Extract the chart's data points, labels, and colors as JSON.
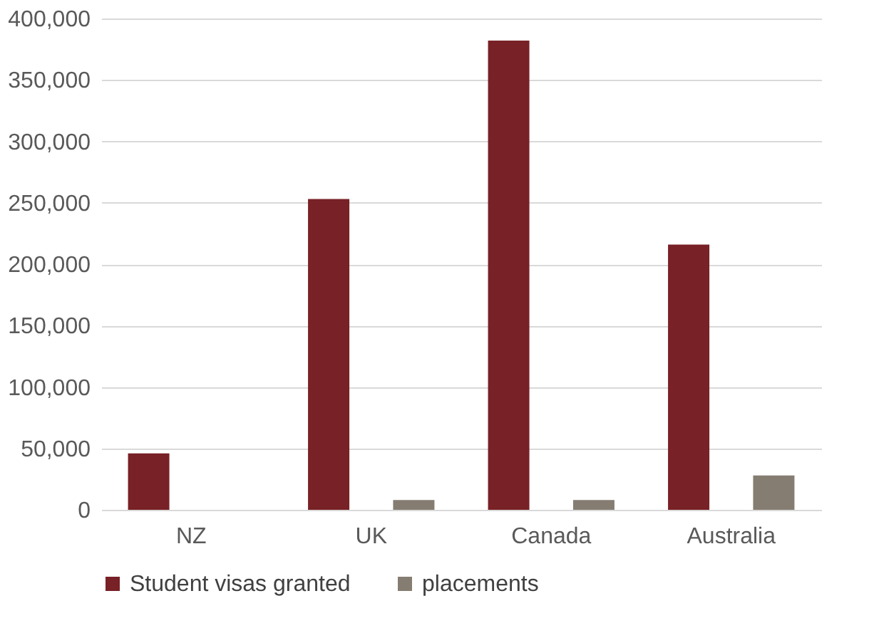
{
  "chart_data": {
    "type": "bar",
    "categories": [
      "NZ",
      "UK",
      "Canada",
      "Australia"
    ],
    "series": [
      {
        "name": "Student visas granted",
        "color": "#782126",
        "values": [
          46000,
          253000,
          382000,
          216000
        ]
      },
      {
        "name": "placements",
        "color": "#867d72",
        "values": [
          0,
          8000,
          8000,
          28000
        ]
      }
    ],
    "ylim": [
      0,
      400000
    ],
    "yticks": [
      0,
      {
        "value": 50000,
        "label": "50,000"
      },
      {
        "value": 100000,
        "label": "100,000"
      },
      {
        "value": 150000,
        "label": "150,000"
      },
      {
        "value": 200000,
        "label": "200,000"
      },
      {
        "value": 250000,
        "label": "250,000"
      },
      {
        "value": 300000,
        "label": "300,000"
      },
      {
        "value": 350000,
        "label": "350,000"
      },
      {
        "value": 400000,
        "label": "400,000"
      }
    ],
    "grid": "y",
    "legend": "bottom"
  }
}
